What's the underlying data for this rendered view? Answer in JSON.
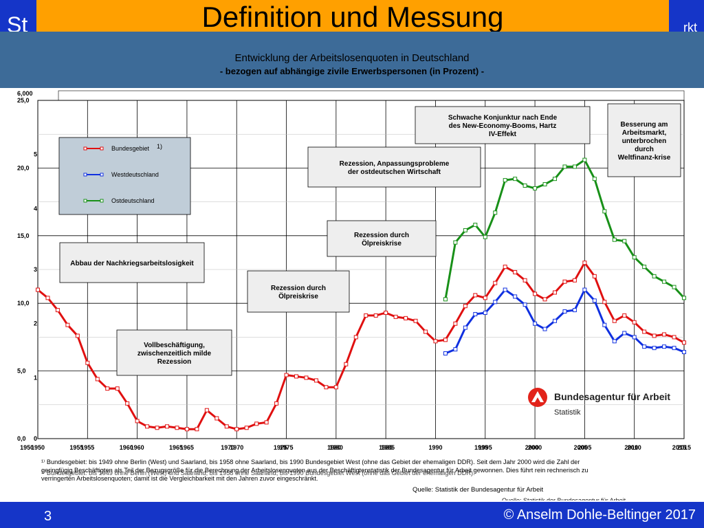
{
  "slide": {
    "title": "Definition und Messung",
    "left_fragment": "St",
    "right_fragment": "rkt",
    "page_number": "3",
    "copyright": "© Anselm Dohle-Beltinger 2017"
  },
  "chart_header": {
    "title": "Entwicklung der Arbeitslosenquoten in Deutschland",
    "subtitle": "-  bezogen auf abhängige zivile Erwerbspersonen (in Prozent) -"
  },
  "chart_data": {
    "type": "line",
    "title": "Entwicklung der Arbeitslosenquoten in Deutschland",
    "subtitle": "-  bezogen auf abhängige zivile Erwerbspersonen (in Prozent) -",
    "xlim": [
      1950,
      2015
    ],
    "ylim": [
      0,
      25
    ],
    "grid": true,
    "legend_position": "top-left",
    "y_ticks": [
      "0,0",
      "5,0",
      "10,0",
      "15,0",
      "20,0",
      "25,0"
    ],
    "y_tick_values": [
      0,
      5,
      10,
      15,
      20,
      25
    ],
    "overlap_left_ticks": [
      "6,000",
      "5",
      "4",
      "3",
      "2",
      "1",
      "0"
    ],
    "overlap_left_values": [
      25,
      21,
      17,
      12.5,
      8.5,
      4.5,
      0
    ],
    "x_ticks": [
      {
        "label": "1950",
        "x": 1950
      },
      {
        "label": "1955",
        "x": 1955
      },
      {
        "label": "1960",
        "x": 1960
      },
      {
        "label": "1965",
        "x": 1965
      },
      {
        "label": "1970",
        "x": 1970
      },
      {
        "label": "1975",
        "x": 1975
      },
      {
        "label": "1980",
        "x": 1980
      },
      {
        "label": "1985",
        "x": 1985
      },
      {
        "label": "1990",
        "x": 1990
      },
      {
        "label": "1995",
        "x": 1995
      },
      {
        "label": "2000",
        "x": 2000
      },
      {
        "label": "2005",
        "x": 2005
      },
      {
        "label": "2010",
        "x": 2010
      },
      {
        "label": "2015",
        "x": 2015
      }
    ],
    "x_ticks_overlap": [
      {
        "label": "1950",
        "x": 1948.9
      },
      {
        "label": "1955",
        "x": 1953.9
      },
      {
        "label": "1960",
        "x": 1958.9
      },
      {
        "label": "1965",
        "x": 1963.9
      },
      {
        "label": "1970",
        "x": 1969.1
      },
      {
        "label": "1975",
        "x": 1974.4
      },
      {
        "label": "1980",
        "x": 1979.8
      },
      {
        "label": "1985",
        "x": 1985.2
      },
      {
        "label": "1995",
        "x": 1994.6
      },
      {
        "label": "2000",
        "x": 1999.7
      },
      {
        "label": "2005",
        "x": 2004.6
      },
      {
        "label": "2010",
        "x": 2009.7
      },
      {
        "label": "2015",
        "x": 2014.5
      }
    ],
    "series": [
      {
        "name": "Bundesgebiet",
        "color": "#e01010",
        "points": [
          [
            1950,
            11.0
          ],
          [
            1951,
            10.4
          ],
          [
            1952,
            9.5
          ],
          [
            1953,
            8.4
          ],
          [
            1954,
            7.6
          ],
          [
            1955,
            5.6
          ],
          [
            1956,
            4.4
          ],
          [
            1957,
            3.7
          ],
          [
            1958,
            3.7
          ],
          [
            1959,
            2.6
          ],
          [
            1960,
            1.3
          ],
          [
            1961,
            0.9
          ],
          [
            1962,
            0.8
          ],
          [
            1963,
            0.9
          ],
          [
            1964,
            0.8
          ],
          [
            1965,
            0.7
          ],
          [
            1966,
            0.7
          ],
          [
            1967,
            2.1
          ],
          [
            1968,
            1.5
          ],
          [
            1969,
            0.9
          ],
          [
            1970,
            0.7
          ],
          [
            1971,
            0.8
          ],
          [
            1972,
            1.1
          ],
          [
            1973,
            1.2
          ],
          [
            1974,
            2.6
          ],
          [
            1975,
            4.7
          ],
          [
            1976,
            4.6
          ],
          [
            1977,
            4.5
          ],
          [
            1978,
            4.3
          ],
          [
            1979,
            3.8
          ],
          [
            1980,
            3.8
          ],
          [
            1981,
            5.5
          ],
          [
            1982,
            7.5
          ],
          [
            1983,
            9.1
          ],
          [
            1984,
            9.1
          ],
          [
            1985,
            9.3
          ],
          [
            1986,
            9.0
          ],
          [
            1987,
            8.9
          ],
          [
            1988,
            8.7
          ],
          [
            1989,
            7.9
          ],
          [
            1990,
            7.2
          ],
          [
            1991,
            7.3
          ],
          [
            1992,
            8.5
          ],
          [
            1993,
            9.8
          ],
          [
            1994,
            10.6
          ],
          [
            1995,
            10.4
          ],
          [
            1996,
            11.5
          ],
          [
            1997,
            12.7
          ],
          [
            1998,
            12.3
          ],
          [
            1999,
            11.7
          ],
          [
            2000,
            10.7
          ],
          [
            2001,
            10.3
          ],
          [
            2002,
            10.8
          ],
          [
            2003,
            11.6
          ],
          [
            2004,
            11.7
          ],
          [
            2005,
            13.0
          ],
          [
            2006,
            12.0
          ],
          [
            2007,
            10.1
          ],
          [
            2008,
            8.7
          ],
          [
            2009,
            9.1
          ],
          [
            2010,
            8.6
          ],
          [
            2011,
            7.9
          ],
          [
            2012,
            7.6
          ],
          [
            2013,
            7.7
          ],
          [
            2014,
            7.5
          ],
          [
            2015,
            7.1
          ]
        ]
      },
      {
        "name": "Westdeutschland",
        "color": "#1030e0",
        "points": [
          [
            1991,
            6.3
          ],
          [
            1992,
            6.6
          ],
          [
            1993,
            8.2
          ],
          [
            1994,
            9.2
          ],
          [
            1995,
            9.3
          ],
          [
            1996,
            10.1
          ],
          [
            1997,
            11.0
          ],
          [
            1998,
            10.5
          ],
          [
            1999,
            9.9
          ],
          [
            2000,
            8.5
          ],
          [
            2001,
            8.1
          ],
          [
            2002,
            8.7
          ],
          [
            2003,
            9.4
          ],
          [
            2004,
            9.5
          ],
          [
            2005,
            11.0
          ],
          [
            2006,
            10.2
          ],
          [
            2007,
            8.4
          ],
          [
            2008,
            7.2
          ],
          [
            2009,
            7.8
          ],
          [
            2010,
            7.5
          ],
          [
            2011,
            6.8
          ],
          [
            2012,
            6.7
          ],
          [
            2013,
            6.8
          ],
          [
            2014,
            6.7
          ],
          [
            2015,
            6.4
          ]
        ]
      },
      {
        "name": "Ostdeutschland",
        "color": "#189018",
        "points": [
          [
            1991,
            10.3
          ],
          [
            1992,
            14.5
          ],
          [
            1993,
            15.4
          ],
          [
            1994,
            15.8
          ],
          [
            1995,
            14.9
          ],
          [
            1996,
            16.7
          ],
          [
            1997,
            19.1
          ],
          [
            1998,
            19.2
          ],
          [
            1999,
            18.7
          ],
          [
            2000,
            18.5
          ],
          [
            2001,
            18.8
          ],
          [
            2002,
            19.2
          ],
          [
            2003,
            20.1
          ],
          [
            2004,
            20.1
          ],
          [
            2005,
            20.6
          ],
          [
            2006,
            19.2
          ],
          [
            2007,
            16.8
          ],
          [
            2008,
            14.7
          ],
          [
            2009,
            14.6
          ],
          [
            2010,
            13.4
          ],
          [
            2011,
            12.7
          ],
          [
            2012,
            12.0
          ],
          [
            2013,
            11.6
          ],
          [
            2014,
            11.2
          ],
          [
            2015,
            10.4
          ]
        ]
      }
    ],
    "legend": [
      {
        "label": "Bundesgebiet",
        "color": "#e01010"
      },
      {
        "label": "Westdeutschland",
        "color": "#1030e0"
      },
      {
        "label": "Ostdeutschland",
        "color": "#189018"
      }
    ],
    "legend_note": "1)",
    "annotations": [
      "Abbau der Nachkriegsarbeitslosigkeit",
      "Vollbeschäftigung, zwischenzeitlich milde Rezession",
      "Rezession durch Ölpreiskrise",
      "Rezession durch Ölpreiskrise",
      "Rezession, Anpassungsprobleme der ostdeutschen Wirtschaft",
      "Schwache Konjunktur nach Ende des New-Economy-Booms, Hartz IV-Effekt",
      "Besserung am Arbeitsmarkt, unterbrochen durch Weltfinanz-krise"
    ],
    "footnote_lines": [
      "¹⁾ Bundesgebiet: bis 1949 ohne Berlin (West) und Saarland, bis 1958 ohne Saarland, bis 1990 Bundesgebiet West (ohne das Gebiet der ehemaligen DDR).  Seit dem Jahr 2000 wird die Zahl der",
      "geringfügig Beschäftigten als Teil der Bezugsgröße für die Berechnung der Arbeitslosenquoten aus der Beschäftigtenstatistik der Bundesagentur für Arbeit gewonnen. Dies führt rein rechnerisch zu",
      "verringerten Arbeitslosenquoten; damit ist die Vergleichbarkeit mit den Jahren zuvor eingeschränkt.",
      "¹⁾ Bundesgebiet: bis 1949 ohne Berlin (West) und Saarland, bis 1958 ohne Saarland, bis 1990 Bundesgebiet West (ohne das Gebiet der ehemaligen DDR)."
    ],
    "source": "Quelle:  Statistik der Bundesagentur für Arbeit",
    "source_overlap": "Quelle:  Statistik der Bundesagentur für Arbeit",
    "logo": {
      "name": "Bundesagentur für Arbeit",
      "subline": "Statistik",
      "color": "#e2231a"
    }
  }
}
